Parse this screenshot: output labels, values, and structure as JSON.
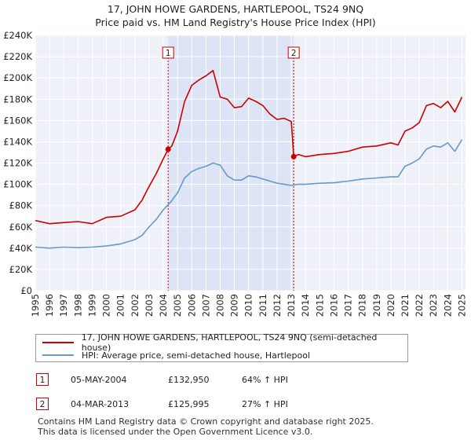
{
  "header": {
    "title": "17, JOHN HOWE GARDENS, HARTLEPOOL, TS24 9NQ",
    "subtitle": "Price paid vs. HM Land Registry's House Price Index (HPI)"
  },
  "chart_data": {
    "type": "line",
    "title": "17, JOHN HOWE GARDENS, HARTLEPOOL, TS24 9NQ",
    "subtitle": "Price paid vs. HM Land Registry's House Price Index (HPI)",
    "xlabel": "",
    "ylabel": "",
    "xlim": [
      1995,
      2025.25
    ],
    "ylim": [
      0,
      240000
    ],
    "grid": true,
    "y_ticks": [
      0,
      20000,
      40000,
      60000,
      80000,
      100000,
      120000,
      140000,
      160000,
      180000,
      200000,
      220000,
      240000
    ],
    "y_tick_labels": [
      "£0",
      "£20K",
      "£40K",
      "£60K",
      "£80K",
      "£100K",
      "£120K",
      "£140K",
      "£160K",
      "£180K",
      "£200K",
      "£220K",
      "£240K"
    ],
    "x_ticks": [
      1995,
      1996,
      1997,
      1998,
      1999,
      2000,
      2001,
      2002,
      2003,
      2004,
      2005,
      2006,
      2007,
      2008,
      2009,
      2010,
      2011,
      2012,
      2013,
      2014,
      2015,
      2016,
      2017,
      2018,
      2019,
      2020,
      2021,
      2022,
      2023,
      2024,
      2025
    ],
    "x_tick_labels": [
      "1995",
      "1996",
      "1997",
      "1998",
      "1999",
      "2000",
      "2001",
      "2002",
      "2003",
      "2004",
      "2005",
      "2006",
      "2007",
      "2008",
      "2009",
      "2010",
      "2011",
      "2012",
      "2013",
      "2014",
      "2015",
      "2016",
      "2017",
      "2018",
      "2019",
      "2020",
      "2021",
      "2022",
      "2023",
      "2024",
      "2025"
    ],
    "shaded_region": [
      2004.34,
      2013.17
    ],
    "series": [
      {
        "name": "17, JOHN HOWE GARDENS, HARTLEPOOL, TS24 9NQ (semi-detached house)",
        "color": "#cc0000",
        "x": [
          1995,
          1996,
          1997,
          1998,
          1999,
          2000,
          2001,
          2002,
          2002.5,
          2003,
          2003.5,
          2004,
          2004.34,
          2004.6,
          2005,
          2005.5,
          2006,
          2006.5,
          2007,
          2007.5,
          2008,
          2008.5,
          2009,
          2009.5,
          2010,
          2010.5,
          2011,
          2011.5,
          2012,
          2012.5,
          2013,
          2013.17,
          2013.5,
          2014,
          2015,
          2016,
          2017,
          2018,
          2019,
          2020,
          2020.5,
          2021,
          2021.5,
          2022,
          2022.5,
          2023,
          2023.5,
          2024,
          2024.5,
          2025
        ],
        "y": [
          66000,
          63000,
          64000,
          65000,
          63000,
          69000,
          70000,
          76000,
          85000,
          98000,
          110000,
          124000,
          132950,
          136000,
          150000,
          178000,
          193000,
          198000,
          202000,
          207000,
          182000,
          180000,
          172000,
          173000,
          181000,
          178000,
          174000,
          166000,
          161000,
          162000,
          159000,
          125995,
          128000,
          126000,
          128000,
          129000,
          131000,
          135000,
          136000,
          139000,
          137000,
          150000,
          153000,
          158000,
          174000,
          176000,
          172000,
          178000,
          168000,
          182000
        ]
      },
      {
        "name": "HPI: Average price, semi-detached house, Hartlepool",
        "color": "#6699cc",
        "x": [
          1995,
          1996,
          1997,
          1998,
          1999,
          2000,
          2001,
          2002,
          2002.5,
          2003,
          2003.5,
          2004,
          2004.5,
          2005,
          2005.5,
          2006,
          2006.5,
          2007,
          2007.5,
          2008,
          2008.5,
          2009,
          2009.5,
          2010,
          2010.5,
          2011,
          2011.5,
          2012,
          2012.5,
          2013,
          2013.5,
          2014,
          2015,
          2016,
          2017,
          2018,
          2019,
          2020,
          2020.5,
          2021,
          2021.5,
          2022,
          2022.5,
          2023,
          2023.5,
          2024,
          2024.5,
          2025
        ],
        "y": [
          41000,
          40000,
          41000,
          40500,
          41000,
          42000,
          44000,
          48000,
          52000,
          60000,
          67000,
          76000,
          83000,
          92000,
          106000,
          112000,
          115000,
          117000,
          120000,
          118000,
          108000,
          104000,
          104000,
          108000,
          107000,
          105000,
          103000,
          101000,
          100000,
          99000,
          100000,
          100000,
          101000,
          101500,
          103000,
          105000,
          106000,
          107000,
          107000,
          117000,
          120000,
          124000,
          133000,
          136000,
          135000,
          139000,
          131000,
          142000
        ]
      }
    ],
    "sales": [
      {
        "label": "1",
        "x": 2004.34,
        "price": 132950
      },
      {
        "label": "2",
        "x": 2013.17,
        "price": 125995
      }
    ]
  },
  "legend": {
    "property_label": "17, JOHN HOWE GARDENS, HARTLEPOOL, TS24 9NQ (semi-detached house)",
    "hpi_label": "HPI: Average price, semi-detached house, Hartlepool",
    "property_color": "#cc0000",
    "hpi_color": "#6699cc"
  },
  "transactions": [
    {
      "num": "1",
      "date": "05-MAY-2004",
      "price": "£132,950",
      "hpi": "64% ↑ HPI"
    },
    {
      "num": "2",
      "date": "04-MAR-2013",
      "price": "£125,995",
      "hpi": "27% ↑ HPI"
    }
  ],
  "footer": {
    "line1": "Contains HM Land Registry data © Crown copyright and database right 2025.",
    "line2": "This data is licensed under the Open Government Licence v3.0."
  }
}
